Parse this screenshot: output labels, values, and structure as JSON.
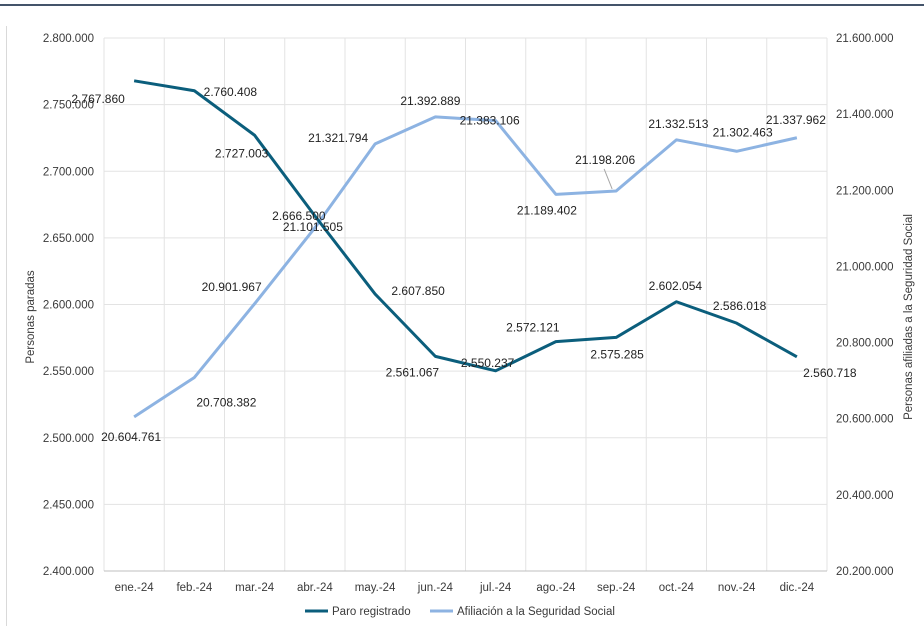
{
  "chart_data": {
    "type": "line",
    "categories": [
      "ene.-24",
      "feb.-24",
      "mar.-24",
      "abr.-24",
      "may.-24",
      "jun.-24",
      "jul.-24",
      "ago.-24",
      "sep.-24",
      "oct.-24",
      "nov.-24",
      "dic.-24"
    ],
    "series": [
      {
        "name": "Paro registrado",
        "axis": "left",
        "color": "#0b5e7c",
        "values": [
          2767860,
          2760408,
          2727003,
          2666500,
          2607850,
          2561067,
          2550237,
          2572121,
          2575285,
          2602054,
          2586018,
          2560718
        ],
        "labels": [
          "2.767.860",
          "2.760.408",
          "2.727.003",
          "2.666.500",
          "2.607.850",
          "2.561.067",
          "2.550.237",
          "2.572.121",
          "2.575.285",
          "2.602.054",
          "2.586.018",
          "2.560.718"
        ]
      },
      {
        "name": "Afiliación a la Seguridad Social",
        "axis": "right",
        "color": "#8db3e2",
        "values": [
          20604761,
          20708382,
          20901967,
          21101505,
          21321794,
          21392889,
          21383106,
          21189402,
          21198206,
          21332513,
          21302463,
          21337962
        ],
        "labels": [
          "20.604.761",
          "20.708.382",
          "20.901.967",
          "21.101.505",
          "21.321.794",
          "21.392.889",
          "21.383.106",
          "21.189.402",
          "21.198.206",
          "21.332.513",
          "21.302.463",
          "21.337.962"
        ]
      }
    ],
    "y_left": {
      "label": "Personas paradas",
      "range": [
        2400000,
        2800000
      ],
      "ticks": [
        2400000,
        2450000,
        2500000,
        2550000,
        2600000,
        2650000,
        2700000,
        2750000,
        2800000
      ],
      "tick_labels": [
        "2.400.000",
        "2.450.000",
        "2.500.000",
        "2.550.000",
        "2.600.000",
        "2.650.000",
        "2.700.000",
        "2.750.000",
        "2.800.000"
      ]
    },
    "y_right": {
      "label": "Personas afiliadas a la Seguridad Social",
      "range": [
        20200000,
        21600000
      ],
      "ticks": [
        20200000,
        20400000,
        20600000,
        20800000,
        21000000,
        21200000,
        21400000,
        21600000
      ],
      "tick_labels": [
        "20.200.000",
        "20.400.000",
        "20.600.000",
        "20.800.000",
        "21.000.000",
        "21.200.000",
        "21.400.000",
        "21.600.000"
      ]
    },
    "grid": true,
    "legend_position": "bottom"
  }
}
